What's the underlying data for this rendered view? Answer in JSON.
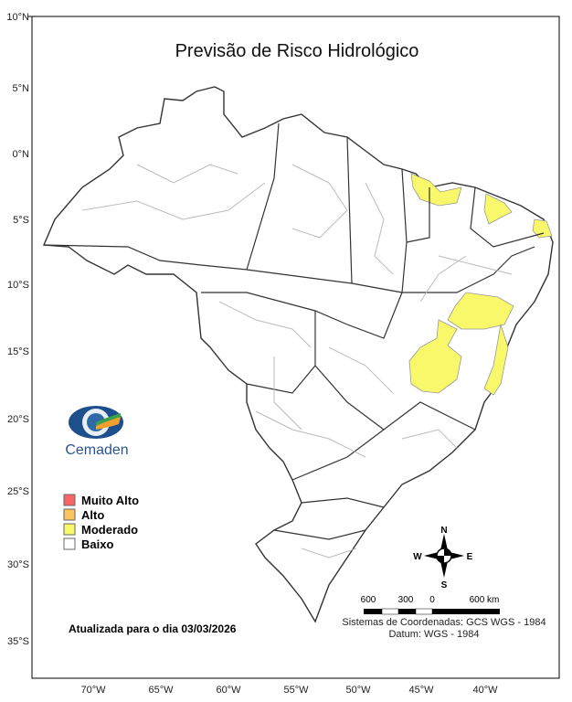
{
  "title": "Previsão de Risco Hidrológico",
  "latitude_labels": [
    "10°N",
    "5°N",
    "0°N",
    "5°S",
    "10°S",
    "15°S",
    "20°S",
    "25°S",
    "30°S",
    "35°S"
  ],
  "longitude_labels": [
    "70°W",
    "65°W",
    "60°W",
    "55°W",
    "50°W",
    "45°W",
    "40°W"
  ],
  "logo": {
    "text": "Cemaden"
  },
  "legend": [
    {
      "label": "Muito Alto",
      "color": "#f56565"
    },
    {
      "label": "Alto",
      "color": "#fcc45c"
    },
    {
      "label": "Moderado",
      "color": "#f8f86a"
    },
    {
      "label": "Baixo",
      "color": "#ffffff"
    }
  ],
  "updated": "Atualizada para o dia 03/03/2026",
  "compass": {
    "n": "N",
    "s": "S",
    "e": "E",
    "w": "W"
  },
  "scale": {
    "labels": [
      "600",
      "300",
      "0",
      "600 km"
    ]
  },
  "coordinate_system": "Sistemas de Coordenadas: GCS WGS - 1984",
  "datum": "Datum: WGS - 1984"
}
